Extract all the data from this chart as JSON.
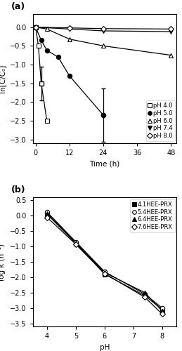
{
  "panel_a": {
    "xlabel": "Time (h)",
    "ylabel": "ln[C/C₀]",
    "xlim": [
      -1,
      50
    ],
    "ylim": [
      -3.1,
      0.35
    ],
    "xticks": [
      0,
      12,
      24,
      36,
      48
    ],
    "yticks": [
      0,
      -0.5,
      -1.0,
      -1.5,
      -2.0,
      -2.5,
      -3.0
    ],
    "series": [
      {
        "label": "pH 4.0",
        "marker": "s",
        "fillstyle": "none",
        "x": [
          0,
          1,
          2,
          4
        ],
        "y": [
          0.0,
          -0.5,
          -1.5,
          -2.5
        ],
        "yerr": [
          null,
          null,
          0.45,
          null
        ]
      },
      {
        "label": "pH 5.0",
        "marker": "o",
        "fillstyle": "full",
        "x": [
          0,
          2,
          4,
          8,
          12,
          24
        ],
        "y": [
          0.0,
          -0.35,
          -0.62,
          -0.8,
          -1.3,
          -2.35
        ],
        "yerr": [
          null,
          null,
          null,
          null,
          null,
          0.72
        ]
      },
      {
        "label": "pH 6.0",
        "marker": "^",
        "fillstyle": "none",
        "x": [
          0,
          4,
          12,
          24,
          48
        ],
        "y": [
          0.0,
          -0.05,
          -0.32,
          -0.5,
          -0.75
        ],
        "yerr": [
          null,
          null,
          null,
          null,
          null
        ]
      },
      {
        "label": "pH 7.4",
        "marker": "v",
        "fillstyle": "full",
        "x": [
          0,
          12,
          24,
          48
        ],
        "y": [
          0.0,
          -0.05,
          -0.1,
          -0.12
        ],
        "yerr": [
          null,
          null,
          null,
          null
        ]
      },
      {
        "label": "pH 8.0",
        "marker": "D",
        "fillstyle": "none",
        "x": [
          0,
          12,
          24,
          48
        ],
        "y": [
          0.0,
          -0.02,
          -0.04,
          -0.05
        ],
        "yerr": [
          null,
          null,
          null,
          null
        ]
      }
    ]
  },
  "panel_b": {
    "xlabel": "pH",
    "ylabel": "log k (h⁻¹)",
    "xlim": [
      3.5,
      8.5
    ],
    "ylim": [
      -3.6,
      0.6
    ],
    "xticks": [
      4,
      5,
      6,
      7,
      8
    ],
    "yticks": [
      0.5,
      0.0,
      -0.5,
      -1.0,
      -1.5,
      -2.0,
      -2.5,
      -3.0,
      -3.5
    ],
    "series": [
      {
        "label": "4.1HEE-PRX",
        "marker": "s",
        "fillstyle": "full",
        "x": [
          4,
          5,
          6,
          7.4,
          8
        ],
        "y": [
          0.05,
          -0.9,
          -1.9,
          -2.6,
          -3.05
        ]
      },
      {
        "label": "5.4HEE-PRX",
        "marker": "o",
        "fillstyle": "none",
        "x": [
          4,
          5,
          6,
          7.4,
          8
        ],
        "y": [
          0.12,
          -0.85,
          -1.82,
          -2.55,
          -3.0
        ]
      },
      {
        "label": "6.4HEE-PRX",
        "marker": "^",
        "fillstyle": "full",
        "x": [
          4,
          5,
          6,
          7.4,
          8
        ],
        "y": [
          0.08,
          -0.88,
          -1.85,
          -2.5,
          -3.1
        ]
      },
      {
        "label": "7.6HEE-PRX",
        "marker": "D",
        "fillstyle": "none",
        "x": [
          4,
          5,
          6,
          7.4,
          8
        ],
        "y": [
          -0.05,
          -0.93,
          -1.88,
          -2.65,
          -3.2
        ]
      }
    ]
  }
}
